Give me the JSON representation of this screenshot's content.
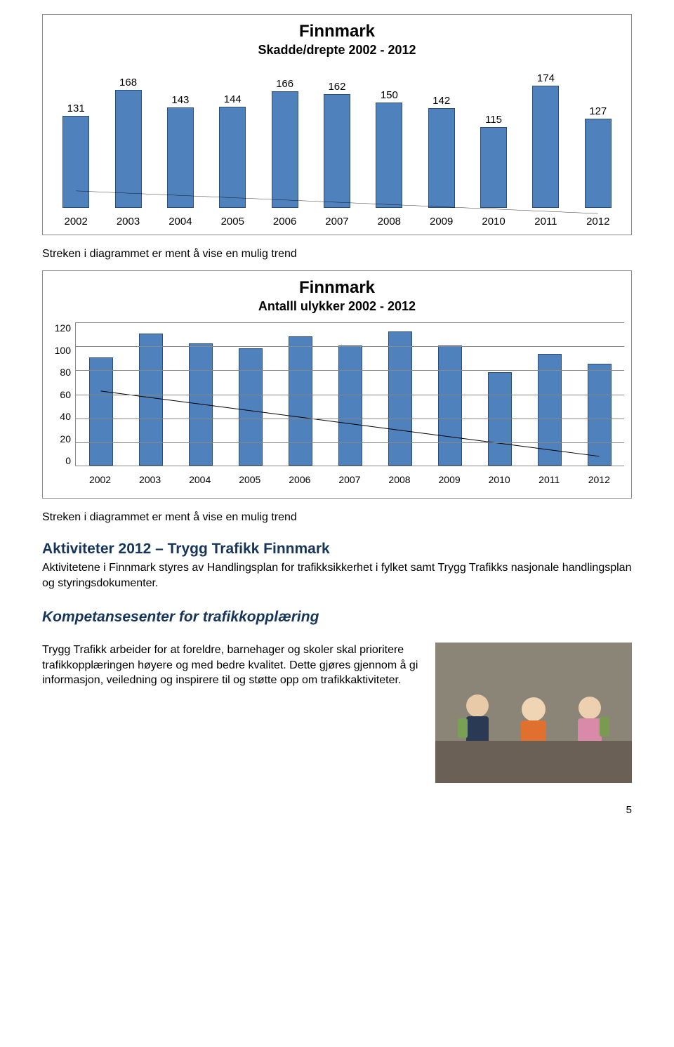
{
  "chart1": {
    "type": "bar",
    "title": "Finnmark",
    "subtitle": "Skadde/drepte 2002 - 2012",
    "categories": [
      "2002",
      "2003",
      "2004",
      "2005",
      "2006",
      "2007",
      "2008",
      "2009",
      "2010",
      "2011",
      "2012"
    ],
    "values": [
      131,
      168,
      143,
      144,
      166,
      162,
      150,
      142,
      115,
      174,
      127
    ],
    "max": 180,
    "bar_color": "#4f81bd",
    "bar_border": "#2c4d75",
    "background_color": "#ffffff",
    "label_fontsize": 15,
    "trendline_color": "#000000",
    "trendline_width": 1
  },
  "note1": "Streken i diagrammet er ment å vise en mulig trend",
  "chart2": {
    "type": "bar",
    "title": "Finnmark",
    "subtitle": "Antalll ulykker 2002 - 2012",
    "categories": [
      "2002",
      "2003",
      "2004",
      "2005",
      "2006",
      "2007",
      "2008",
      "2009",
      "2010",
      "2011",
      "2012"
    ],
    "values": [
      90,
      110,
      102,
      98,
      108,
      100,
      112,
      100,
      78,
      93,
      85
    ],
    "ylim": [
      0,
      120
    ],
    "ytick_step": 20,
    "yticks": [
      120,
      100,
      80,
      60,
      40,
      20,
      0
    ],
    "bar_color": "#4f81bd",
    "bar_border": "#2c4d75",
    "grid_color": "#888888",
    "background_color": "#ffffff",
    "trendline_color": "#000000",
    "trendline_width": 1
  },
  "note2": "Streken i diagrammet er ment å vise en mulig trend",
  "section": {
    "heading": "Aktiviteter 2012 – Trygg Trafikk Finnmark",
    "body": "Aktivitetene i Finnmark styres av Handlingsplan for trafikksikkerhet i fylket samt Trygg Trafikks nasjonale handlingsplan og styringsdokumenter."
  },
  "subheading": "Kompetansesenter for trafikkopplæring",
  "paragraph": "Trygg Trafikk arbeider for at foreldre, barnehager og skoler skal prioritere trafikkopplæringen høyere og med bedre kvalitet.  Dette gjøres gjennom å gi informasjon, veiledning og inspirere til og støtte opp om trafikkaktiviteter.",
  "page_number": "5",
  "heading_color": "#16355d"
}
